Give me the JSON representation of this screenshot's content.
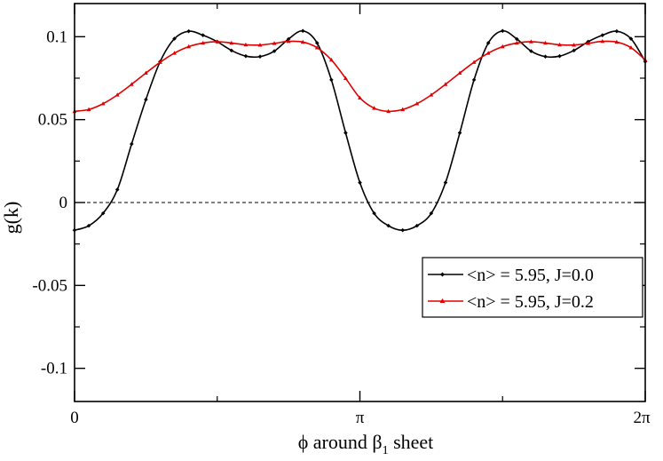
{
  "chart_data": {
    "type": "line",
    "title": "",
    "xlabel_main": "ϕ around β",
    "xlabel_sub": "1",
    "xlabel_tail": " sheet",
    "ylabel": "g(k)",
    "xlim": [
      0,
      6.28318
    ],
    "ylim": [
      -0.12,
      0.12
    ],
    "x_ticks": [
      {
        "value": 0,
        "label": "0"
      },
      {
        "value": 3.14159,
        "label": "π"
      },
      {
        "value": 6.28318,
        "label": "2π"
      }
    ],
    "y_ticks": [
      {
        "value": 0.1,
        "label": "0.1"
      },
      {
        "value": 0.05,
        "label": "0.05"
      },
      {
        "value": 0,
        "label": "0"
      },
      {
        "value": -0.05,
        "label": "-0.05"
      },
      {
        "value": -0.1,
        "label": "-0.1"
      }
    ],
    "zero_line": true,
    "grid": false,
    "legend_position": "lower-right",
    "series": [
      {
        "name": "<n> = 5.95, J=0.0",
        "color": "#000000",
        "marker": "diamond",
        "x": [
          0.0,
          0.1571,
          0.3142,
          0.4712,
          0.6283,
          0.7854,
          0.9425,
          1.0996,
          1.2566,
          1.4137,
          1.5708,
          1.7279,
          1.885,
          2.042,
          2.1991,
          2.3562,
          2.5133,
          2.6704,
          2.8274,
          2.9845,
          3.1416,
          3.2987,
          3.4558,
          3.6128,
          3.7699,
          3.927,
          4.0841,
          4.2412,
          4.3982,
          4.5553,
          4.7124,
          4.8695,
          5.0265,
          5.1836,
          5.3407,
          5.4978,
          5.6549,
          5.8119,
          5.969,
          6.1261,
          6.2832
        ],
        "y": [
          -0.0167,
          -0.014,
          -0.0065,
          0.0078,
          0.0353,
          0.0621,
          0.085,
          0.0988,
          0.1033,
          0.1009,
          0.097,
          0.0917,
          0.0883,
          0.088,
          0.0913,
          0.0986,
          0.1035,
          0.0962,
          0.074,
          0.042,
          0.012,
          -0.0065,
          -0.014,
          -0.0167,
          -0.014,
          -0.0065,
          0.012,
          0.042,
          0.074,
          0.0962,
          0.1035,
          0.0986,
          0.0913,
          0.088,
          0.0883,
          0.0917,
          0.097,
          0.1009,
          0.1033,
          0.0988,
          0.085
        ]
      },
      {
        "name": "<n> = 5.95, J=0.2",
        "color": "#e00000",
        "marker": "triangle",
        "x": [
          0.0,
          0.1571,
          0.3142,
          0.4712,
          0.6283,
          0.7854,
          0.9425,
          1.0996,
          1.2566,
          1.4137,
          1.5708,
          1.7279,
          1.885,
          2.042,
          2.1991,
          2.3562,
          2.5133,
          2.6704,
          2.8274,
          2.9845,
          3.1416,
          3.2987,
          3.4558,
          3.6128,
          3.7699,
          3.927,
          4.0841,
          4.2412,
          4.3982,
          4.5553,
          4.7124,
          4.8695,
          5.0265,
          5.1836,
          5.3407,
          5.4978,
          5.6549,
          5.8119,
          5.969,
          6.1261,
          6.2832
        ],
        "y": [
          0.055,
          0.0561,
          0.0596,
          0.0649,
          0.0713,
          0.0781,
          0.0846,
          0.0901,
          0.094,
          0.0962,
          0.097,
          0.0962,
          0.0951,
          0.095,
          0.096,
          0.0972,
          0.0968,
          0.0934,
          0.086,
          0.0749,
          0.0631,
          0.0569,
          0.055,
          0.0561,
          0.0596,
          0.0649,
          0.0713,
          0.0781,
          0.0846,
          0.0901,
          0.094,
          0.0962,
          0.097,
          0.0962,
          0.0951,
          0.095,
          0.096,
          0.0972,
          0.0968,
          0.0934,
          0.086
        ]
      }
    ]
  }
}
